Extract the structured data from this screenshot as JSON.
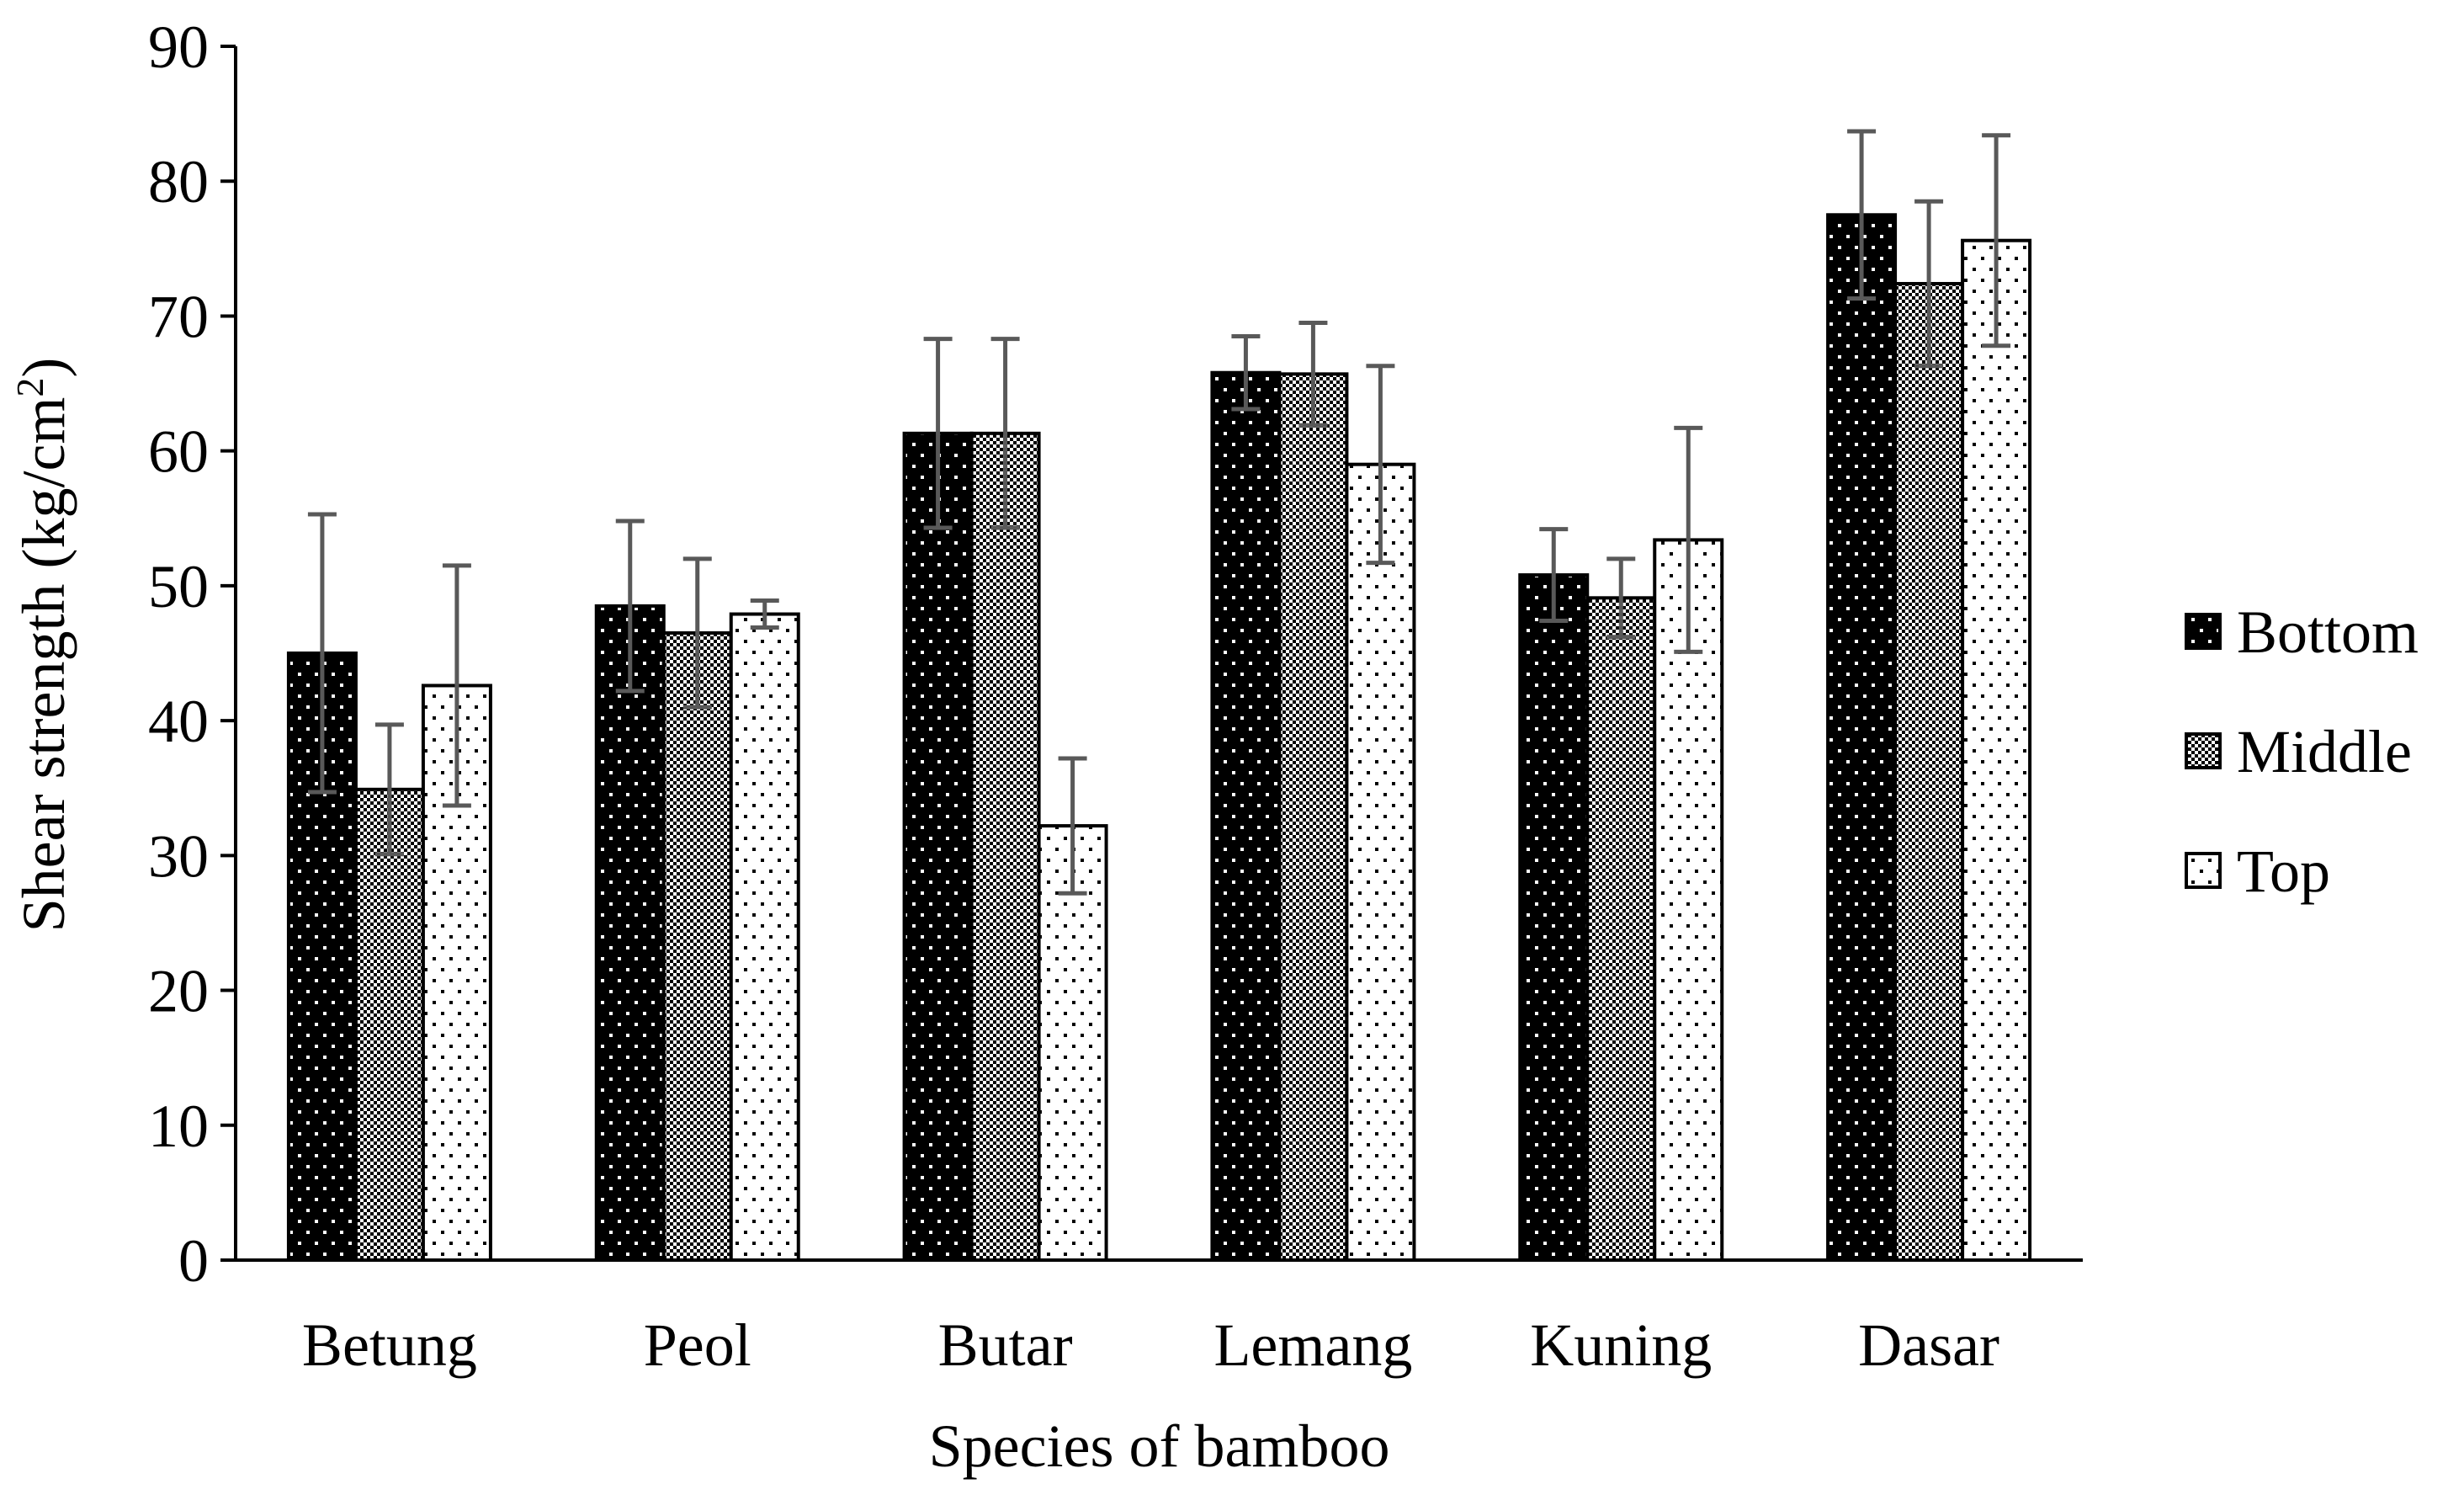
{
  "chart_data": {
    "type": "bar",
    "title": "",
    "xlabel": "Species of bamboo",
    "ylabel": "Shear strength (kg/cm",
    "ylabel_superscript": "2",
    "ylabel_suffix": ")",
    "ylim": [
      0,
      90
    ],
    "yticks": [
      0,
      10,
      20,
      30,
      40,
      50,
      60,
      70,
      80,
      90
    ],
    "categories": [
      "Betung",
      "Peol",
      "Butar",
      "Lemang",
      "Kuning",
      "Dasar"
    ],
    "legend_position": "right",
    "series": [
      {
        "name": "Bottom",
        "pattern": "black-dots",
        "values": [
          45.0,
          48.5,
          61.3,
          65.8,
          50.8,
          77.5
        ],
        "errors": [
          10.3,
          6.3,
          7.0,
          2.7,
          3.4,
          6.2
        ]
      },
      {
        "name": "Middle",
        "pattern": "checker",
        "values": [
          34.9,
          46.5,
          61.3,
          65.7,
          49.1,
          72.4
        ],
        "errors": [
          4.8,
          5.5,
          7.0,
          3.8,
          2.9,
          6.1
        ]
      },
      {
        "name": "Top",
        "pattern": "white-dots",
        "values": [
          42.6,
          47.9,
          32.2,
          59.0,
          53.4,
          75.6
        ],
        "errors": [
          8.9,
          1.0,
          5.0,
          7.3,
          8.3,
          7.8
        ]
      }
    ],
    "colors": {
      "bar_stroke": "#000000",
      "error_bar": "#595959",
      "axis": "#000000"
    }
  }
}
